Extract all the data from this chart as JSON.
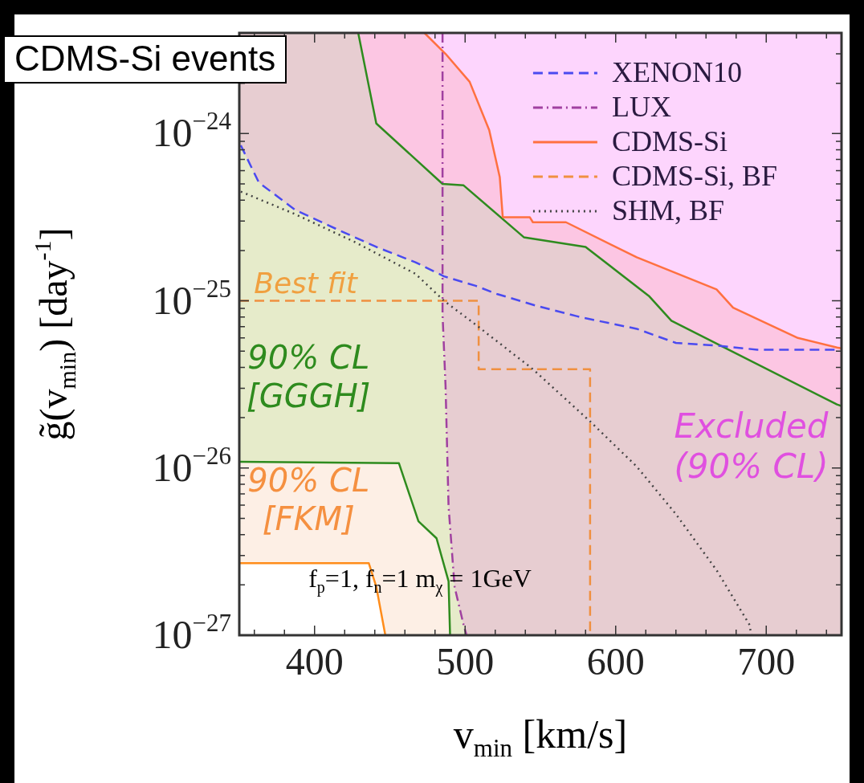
{
  "chart_data": {
    "type": "line",
    "title": "CDMS-Si events",
    "xlabel": "v$_{min}$ [km/s]",
    "ylabel": "g̃(v$_{min}$) [day$^{-1}$]",
    "log": "y",
    "grid": false,
    "legend": "top right",
    "xlim": [
      350,
      750
    ],
    "ylim": [
      1e-27,
      4e-24
    ],
    "xticks": [
      {
        "value": 360,
        "label": null
      },
      {
        "value": 380,
        "label": null
      },
      400,
      {
        "value": 420,
        "label": null
      },
      {
        "value": 440,
        "label": null
      },
      {
        "value": 460,
        "label": null
      },
      {
        "value": 480,
        "label": null
      },
      500,
      {
        "value": 520,
        "label": null
      },
      {
        "value": 540,
        "label": null
      },
      {
        "value": 560,
        "label": null
      },
      {
        "value": 580,
        "label": null
      },
      600,
      {
        "value": 620,
        "label": null
      },
      {
        "value": 640,
        "label": null
      },
      {
        "value": 660,
        "label": null
      },
      {
        "value": 680,
        "label": null
      },
      700,
      {
        "value": 720,
        "label": null
      },
      {
        "value": 740,
        "label": null
      }
    ],
    "yticks": [
      {
        "value": 1e-27,
        "label": "10$^{−27}$"
      },
      {
        "value": 2e-27,
        "label": null
      },
      {
        "value": 3e-27,
        "label": null
      },
      {
        "value": 4e-27,
        "label": null
      },
      {
        "value": 5e-27,
        "label": null
      },
      {
        "value": 6e-27,
        "label": null
      },
      {
        "value": 7e-27,
        "label": null
      },
      {
        "value": 8e-27,
        "label": null
      },
      {
        "value": 9e-27,
        "label": null
      },
      {
        "value": 1e-26,
        "label": "10$^{−26}$"
      },
      {
        "value": 2e-26,
        "label": null
      },
      {
        "value": 3e-26,
        "label": null
      },
      {
        "value": 4e-26,
        "label": null
      },
      {
        "value": 5e-26,
        "label": null
      },
      {
        "value": 6e-26,
        "label": null
      },
      {
        "value": 7e-26,
        "label": null
      },
      {
        "value": 8e-26,
        "label": null
      },
      {
        "value": 9e-26,
        "label": null
      },
      {
        "value": 1e-25,
        "label": "10$^{−25}$"
      },
      {
        "value": 2e-25,
        "label": null
      },
      {
        "value": 3e-25,
        "label": null
      },
      {
        "value": 4e-25,
        "label": null
      },
      {
        "value": 5e-25,
        "label": null
      },
      {
        "value": 6e-25,
        "label": null
      },
      {
        "value": 7e-25,
        "label": null
      },
      {
        "value": 8e-25,
        "label": null
      },
      {
        "value": 9e-25,
        "label": null
      },
      {
        "value": 1e-24,
        "label": "10$^{−24}$"
      },
      {
        "value": 2e-24,
        "label": null
      },
      {
        "value": 3e-24,
        "label": null
      }
    ],
    "series": [
      {
        "color": "#2e8b1e",
        "line_style": "solid",
        "x": [
          429,
          441,
          485,
          499,
          539,
          580,
          622,
          637,
          747,
          750
        ],
        "values": [
          4e-24,
          1.15e-24,
          5e-25,
          4.9e-25,
          2.4e-25,
          2.1e-25,
          1.07e-25,
          7.6e-26,
          2.4e-26,
          2.35e-26
        ]
      },
      {
        "color": "#2e8b1e",
        "line_style": "solid",
        "x": [
          350,
          456,
          469,
          481,
          489,
          490
        ],
        "values": [
          1.09e-26,
          1.07e-26,
          4.8e-27,
          3.8e-27,
          2.1e-27,
          1e-27
        ]
      },
      {
        "color": "#ff8c1a",
        "line_style": "solid",
        "x": [
          350,
          436,
          441,
          447
        ],
        "values": [
          2.7e-27,
          2.7e-27,
          1.95e-27,
          1e-27
        ]
      },
      {
        "name": "XENON10",
        "color": "#4a4af0",
        "line_style": "dashed",
        "x": [
          351,
          363,
          387,
          414,
          441,
          467,
          486,
          507,
          521,
          548,
          574,
          579,
          614,
          640,
          667,
          694,
          747
        ],
        "values": [
          8.5e-25,
          5.1e-25,
          3.5e-25,
          2.7e-25,
          2.1e-25,
          1.7e-25,
          1.4e-25,
          1.23e-25,
          1.1e-25,
          9.3e-26,
          8.1e-26,
          7.9e-26,
          6.8e-26,
          5.6e-26,
          5.4e-26,
          5.1e-26,
          5.1e-26
        ]
      },
      {
        "name": "LUX",
        "color": "#a040a0",
        "line_style": "dashdot",
        "x": [
          485,
          485,
          487,
          489,
          493,
          499,
          501
        ],
        "values": [
          4e-24,
          8.3e-26,
          3.1e-26,
          5.9e-27,
          1.95e-27,
          1.15e-27,
          1e-27
        ]
      },
      {
        "name": "CDMS-Si",
        "color": "#ff7040",
        "line_style": "solid",
        "x": [
          473,
          487,
          503,
          516,
          523,
          525,
          543,
          545,
          567,
          614,
          667,
          678,
          721,
          747,
          750
        ],
        "values": [
          4e-24,
          3e-24,
          2.04e-24,
          1.05e-24,
          5.5e-25,
          3.16e-25,
          3.16e-25,
          2.95e-25,
          2.95e-25,
          1.82e-25,
          1.17e-25,
          9.1e-26,
          6e-26,
          5.25e-26,
          5.2e-26
        ]
      },
      {
        "name": "CDMS-Si, BF",
        "color": "#f09040",
        "line_style": "dashed",
        "x": [
          350,
          509,
          509,
          583,
          583
        ],
        "values": [
          1e-25,
          1e-25,
          3.9e-26,
          3.9e-26,
          1e-27
        ]
      },
      {
        "name": "SHM, BF",
        "color": "#444444",
        "line_style": "dotted",
        "x": [
          351,
          387,
          427,
          467,
          486,
          507,
          545,
          583,
          614,
          640,
          667,
          689,
          690
        ],
        "values": [
          4.5e-25,
          3.3e-25,
          2.24e-25,
          1.45e-25,
          1e-25,
          7.2e-26,
          3.9e-26,
          1.9e-26,
          1.02e-26,
          5.3e-27,
          2.45e-27,
          1.15e-27,
          1e-27
        ]
      }
    ],
    "annotations": [
      "Best fit",
      "90% CL\n[GGGH]",
      "90% CL\n[FKM]",
      "Excluded\n(90% CL)",
      "f$_{p}$=1, f$_{n}$=1 m$_{χ}$ = 1GeV"
    ]
  }
}
